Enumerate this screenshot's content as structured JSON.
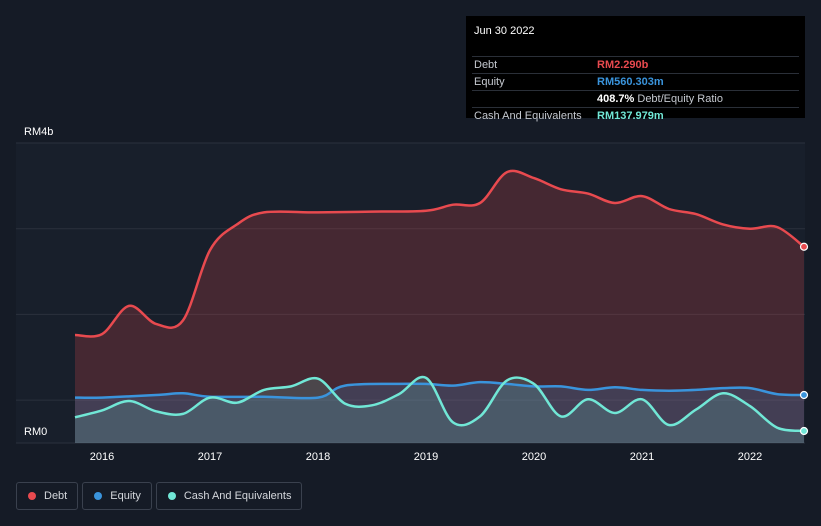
{
  "tooltip": {
    "date": "Jun 30 2022",
    "rows": [
      {
        "label": "Debt",
        "value": "RM2.290b",
        "color": "#e84a4f"
      },
      {
        "label": "Equity",
        "value": "RM560.303m",
        "color": "#3a94dc"
      },
      {
        "label": "",
        "value": "408.7%",
        "sub": "Debt/Equity Ratio",
        "color": "#ffffff"
      },
      {
        "label": "Cash And Equivalents",
        "value": "RM137.979m",
        "color": "#71e7d6"
      }
    ]
  },
  "legend": [
    {
      "label": "Debt",
      "color": "#e84a4f"
    },
    {
      "label": "Equity",
      "color": "#3a94dc"
    },
    {
      "label": "Cash And Equivalents",
      "color": "#71e7d6"
    }
  ],
  "chart_data": {
    "type": "area",
    "title": "",
    "xlabel": "",
    "ylabel": "",
    "y_top_label": "RM4b",
    "y_bottom_label": "RM0",
    "ylim": [
      0,
      3.5
    ],
    "xlim": [
      2015.5,
      2022.5
    ],
    "x_ticks": [
      "2016",
      "2017",
      "2018",
      "2019",
      "2020",
      "2021",
      "2022"
    ],
    "x_tick_values": [
      2016,
      2017,
      2018,
      2019,
      2020,
      2021,
      2022
    ],
    "grid": true,
    "series": [
      {
        "name": "Debt",
        "color": "#e84a4f",
        "points": [
          [
            2015.75,
            1.26
          ],
          [
            2016.0,
            1.27
          ],
          [
            2016.25,
            1.6
          ],
          [
            2016.5,
            1.39
          ],
          [
            2016.75,
            1.43
          ],
          [
            2017.0,
            2.25
          ],
          [
            2017.25,
            2.55
          ],
          [
            2017.5,
            2.69
          ],
          [
            2018.0,
            2.69
          ],
          [
            2018.5,
            2.7
          ],
          [
            2019.0,
            2.71
          ],
          [
            2019.25,
            2.78
          ],
          [
            2019.5,
            2.8
          ],
          [
            2019.75,
            3.16
          ],
          [
            2020.0,
            3.09
          ],
          [
            2020.25,
            2.96
          ],
          [
            2020.5,
            2.91
          ],
          [
            2020.75,
            2.8
          ],
          [
            2021.0,
            2.88
          ],
          [
            2021.25,
            2.73
          ],
          [
            2021.5,
            2.67
          ],
          [
            2021.75,
            2.55
          ],
          [
            2022.0,
            2.5
          ],
          [
            2022.25,
            2.52
          ],
          [
            2022.5,
            2.29
          ]
        ]
      },
      {
        "name": "Equity",
        "color": "#3a94dc",
        "points": [
          [
            2015.75,
            0.53
          ],
          [
            2016.0,
            0.53
          ],
          [
            2016.5,
            0.56
          ],
          [
            2016.75,
            0.58
          ],
          [
            2017.0,
            0.54
          ],
          [
            2017.5,
            0.54
          ],
          [
            2018.0,
            0.53
          ],
          [
            2018.25,
            0.67
          ],
          [
            2018.75,
            0.69
          ],
          [
            2019.0,
            0.69
          ],
          [
            2019.25,
            0.67
          ],
          [
            2019.5,
            0.71
          ],
          [
            2019.75,
            0.69
          ],
          [
            2020.0,
            0.66
          ],
          [
            2020.25,
            0.66
          ],
          [
            2020.5,
            0.62
          ],
          [
            2020.75,
            0.65
          ],
          [
            2021.0,
            0.62
          ],
          [
            2021.25,
            0.61
          ],
          [
            2021.5,
            0.62
          ],
          [
            2021.75,
            0.64
          ],
          [
            2022.0,
            0.64
          ],
          [
            2022.25,
            0.57
          ],
          [
            2022.5,
            0.56
          ]
        ]
      },
      {
        "name": "Cash And Equivalents",
        "color": "#71e7d6",
        "points": [
          [
            2015.75,
            0.3
          ],
          [
            2016.0,
            0.38
          ],
          [
            2016.25,
            0.49
          ],
          [
            2016.5,
            0.37
          ],
          [
            2016.75,
            0.34
          ],
          [
            2017.0,
            0.53
          ],
          [
            2017.25,
            0.47
          ],
          [
            2017.5,
            0.62
          ],
          [
            2017.75,
            0.66
          ],
          [
            2018.0,
            0.75
          ],
          [
            2018.25,
            0.46
          ],
          [
            2018.5,
            0.44
          ],
          [
            2018.75,
            0.57
          ],
          [
            2019.0,
            0.76
          ],
          [
            2019.25,
            0.24
          ],
          [
            2019.5,
            0.31
          ],
          [
            2019.75,
            0.73
          ],
          [
            2020.0,
            0.69
          ],
          [
            2020.25,
            0.31
          ],
          [
            2020.5,
            0.51
          ],
          [
            2020.75,
            0.35
          ],
          [
            2021.0,
            0.51
          ],
          [
            2021.25,
            0.21
          ],
          [
            2021.5,
            0.39
          ],
          [
            2021.75,
            0.58
          ],
          [
            2022.0,
            0.43
          ],
          [
            2022.25,
            0.18
          ],
          [
            2022.5,
            0.14
          ]
        ]
      }
    ]
  }
}
